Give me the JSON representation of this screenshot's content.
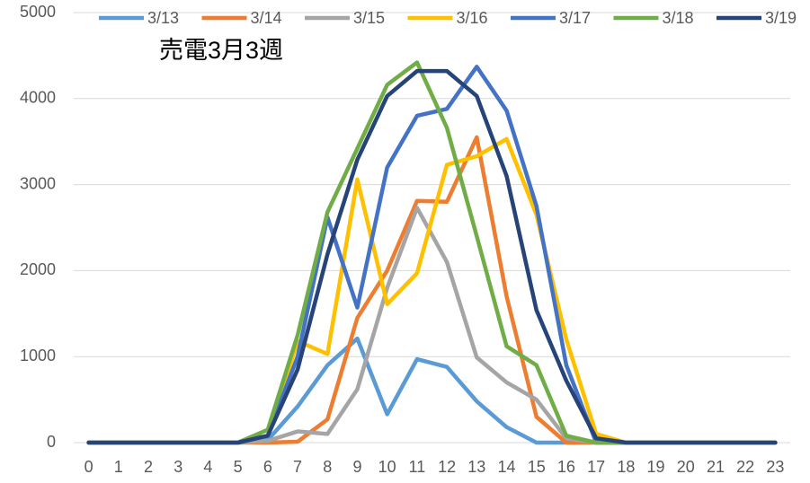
{
  "chart_data": {
    "type": "line",
    "title": "売電3月3週",
    "categories": [
      "0",
      "1",
      "2",
      "3",
      "4",
      "5",
      "6",
      "7",
      "8",
      "9",
      "10",
      "11",
      "12",
      "13",
      "14",
      "15",
      "16",
      "17",
      "18",
      "19",
      "20",
      "21",
      "22",
      "23"
    ],
    "series": [
      {
        "name": "3/13",
        "color": "#5b9bd5",
        "values": [
          0,
          0,
          0,
          0,
          0,
          0,
          30,
          420,
          900,
          1210,
          330,
          970,
          880,
          480,
          180,
          0,
          0,
          0,
          0,
          0,
          0,
          0,
          0,
          0
        ]
      },
      {
        "name": "3/14",
        "color": "#ed7d31",
        "values": [
          0,
          0,
          0,
          0,
          0,
          0,
          0,
          10,
          270,
          1450,
          2000,
          2810,
          2800,
          3550,
          1700,
          300,
          0,
          0,
          0,
          0,
          0,
          0,
          0,
          0
        ]
      },
      {
        "name": "3/15",
        "color": "#a5a5a5",
        "values": [
          0,
          0,
          0,
          0,
          0,
          0,
          20,
          130,
          100,
          620,
          1800,
          2730,
          2100,
          990,
          700,
          500,
          50,
          0,
          0,
          0,
          0,
          0,
          0,
          0
        ]
      },
      {
        "name": "3/16",
        "color": "#ffc000",
        "values": [
          0,
          0,
          0,
          0,
          0,
          0,
          80,
          1180,
          1030,
          3060,
          1610,
          1970,
          3230,
          3330,
          3530,
          2650,
          1200,
          100,
          0,
          0,
          0,
          0,
          0,
          0
        ]
      },
      {
        "name": "3/17",
        "color": "#4472c4",
        "values": [
          0,
          0,
          0,
          0,
          0,
          0,
          80,
          1000,
          2620,
          1570,
          3200,
          3800,
          3880,
          4370,
          3860,
          2750,
          900,
          0,
          0,
          0,
          0,
          0,
          0,
          0
        ]
      },
      {
        "name": "3/18",
        "color": "#70ad47",
        "values": [
          0,
          0,
          0,
          0,
          0,
          0,
          150,
          1250,
          2680,
          3420,
          4160,
          4420,
          3660,
          2400,
          1120,
          900,
          80,
          0,
          0,
          0,
          0,
          0,
          0,
          0
        ]
      },
      {
        "name": "3/19",
        "color": "#264478",
        "values": [
          0,
          0,
          0,
          0,
          0,
          0,
          80,
          850,
          2190,
          3290,
          4030,
          4320,
          4320,
          4030,
          3100,
          1540,
          720,
          50,
          0,
          0,
          0,
          0,
          0,
          0
        ]
      }
    ],
    "ylim": [
      0,
      5000
    ],
    "yticks": [
      0,
      1000,
      2000,
      3000,
      4000,
      5000
    ],
    "grid": true,
    "legend": "top"
  }
}
